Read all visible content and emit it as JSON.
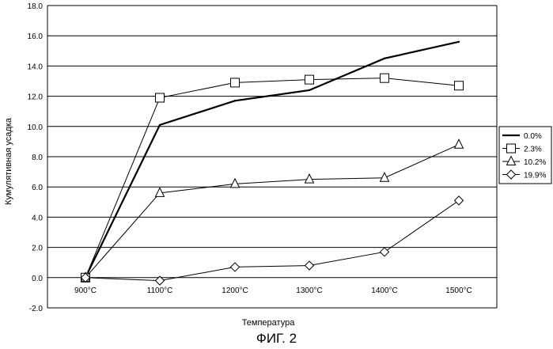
{
  "chart_data": {
    "type": "line",
    "title": "",
    "xlabel": "Температура",
    "ylabel": "Кумулятивная усадка",
    "categories": [
      "900°C",
      "1100°C",
      "1200°C",
      "1300°C",
      "1400°C",
      "1500°C"
    ],
    "ylim": [
      -2.0,
      18.0
    ],
    "yticks": [
      "-2.0",
      "0.0",
      "2.0",
      "4.0",
      "6.0",
      "8.0",
      "10.0",
      "12.0",
      "14.0",
      "16.0",
      "18.0"
    ],
    "grid": "horizontal",
    "legend_position": "right",
    "series": [
      {
        "name": "0.0%",
        "marker": "none",
        "line": "thick",
        "values": [
          0.0,
          10.1,
          11.7,
          12.4,
          14.5,
          15.6
        ]
      },
      {
        "name": "2.3%",
        "marker": "square",
        "line": "thin",
        "values": [
          0.0,
          11.9,
          12.9,
          13.1,
          13.2,
          12.7
        ]
      },
      {
        "name": "10.2%",
        "marker": "triangle",
        "line": "thin",
        "values": [
          0.0,
          5.6,
          6.2,
          6.5,
          6.6,
          8.8
        ]
      },
      {
        "name": "19.9%",
        "marker": "diamond",
        "line": "thin",
        "values": [
          0.0,
          -0.2,
          0.7,
          0.8,
          1.7,
          5.1
        ]
      }
    ]
  },
  "caption": "ФИГ. 2"
}
